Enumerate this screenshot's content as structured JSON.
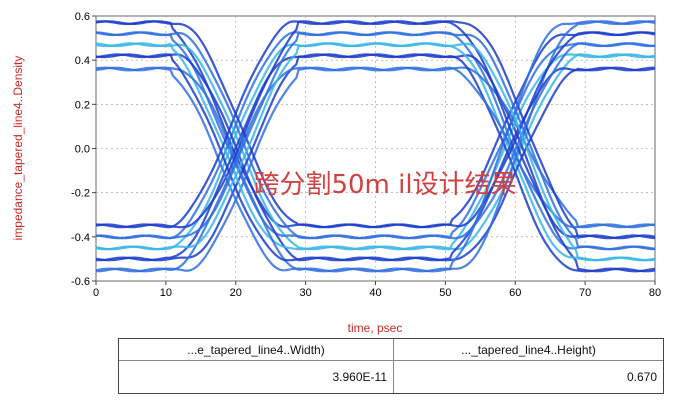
{
  "chart_data": {
    "type": "line",
    "subtype": "eye-diagram",
    "title": "",
    "xlabel": "time, psec",
    "ylabel": "impedance_tapered_line4..Density",
    "xlim": [
      0,
      80
    ],
    "ylim": [
      -0.6,
      0.6
    ],
    "x_ticks": [
      0,
      10,
      20,
      30,
      40,
      50,
      60,
      70,
      80
    ],
    "x_tick_labels": [
      "0",
      "10",
      "20",
      "30",
      "40",
      "50",
      "60",
      "70",
      "80"
    ],
    "y_ticks": [
      0.6,
      0.4,
      0.2,
      0.0,
      -0.2,
      -0.4,
      -0.6
    ],
    "y_tick_labels": [
      "0.6",
      "0.4",
      "0.2",
      "0.0",
      "-0.2",
      "-0.4",
      "-0.6"
    ],
    "grid": true,
    "annotation": "跨分割50m il设计结果",
    "crossing_points_ps": [
      20,
      60
    ],
    "high_levels": [
      0.57,
      0.52,
      0.47,
      0.42,
      0.36
    ],
    "low_levels": [
      -0.35,
      -0.4,
      -0.45,
      -0.5,
      -0.55
    ],
    "colors": {
      "trace_dark": "#1a3ccc",
      "trace_mid": "#2e6fe0",
      "trace_light": "#36b6e8",
      "grid": "#9a9a9a",
      "label": "#cc2a2a"
    }
  },
  "table": {
    "headers": [
      "...e_tapered_line4..Width)",
      "..._tapered_line4..Height)"
    ],
    "values": [
      "3.960E-11",
      "0.670"
    ]
  }
}
